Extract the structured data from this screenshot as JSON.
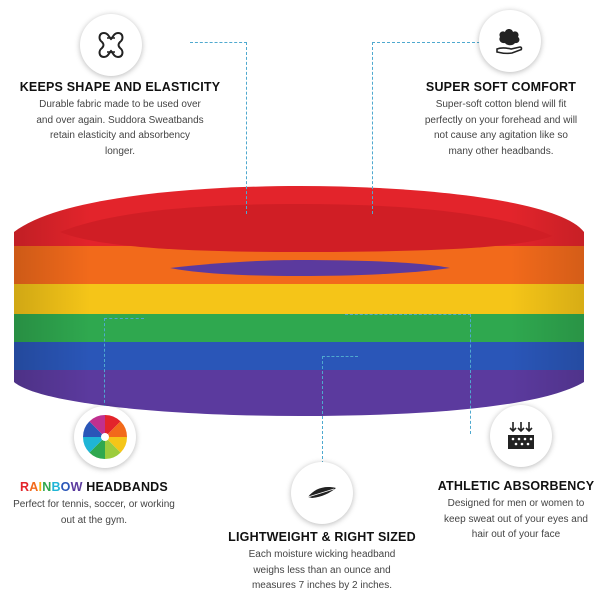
{
  "features": {
    "shape": {
      "icon": "stretch-icon",
      "title": "KEEPS SHAPE AND ELASTICITY",
      "desc": "Durable fabric made to be used over and over again. Suddora Sweatbands retain elasticity and absorbency longer."
    },
    "soft": {
      "icon": "cotton-hand-icon",
      "title": "SUPER SOFT COMFORT",
      "desc": "Super-soft cotton blend will fit perfectly on your forehead and will not cause any agitation like so many other headbands."
    },
    "rainbow": {
      "icon": "color-wheel-icon",
      "title_letters": [
        "R",
        "A",
        "I",
        "N",
        "B",
        "O",
        "W"
      ],
      "title_rest": " HEADBANDS",
      "desc": "Perfect for tennis, soccer, or working out at the gym."
    },
    "light": {
      "icon": "feather-icon",
      "title": "LIGHTWEIGHT & RIGHT SIZED",
      "desc": "Each moisture wicking headband weighs less than an ounce and measures 7 inches by 2 inches."
    },
    "absorb": {
      "icon": "absorbency-icon",
      "title": "ATHLETIC ABSORBENCY",
      "desc": "Designed for men or women to keep sweat out of your eyes and hair out of your face"
    }
  },
  "colors": {
    "accent_line": "#4fa9cf",
    "rainbow": [
      "#e3242b",
      "#f26a1b",
      "#f5c518",
      "#2fa84f",
      "#2a56b8",
      "#5b3a9e"
    ]
  }
}
